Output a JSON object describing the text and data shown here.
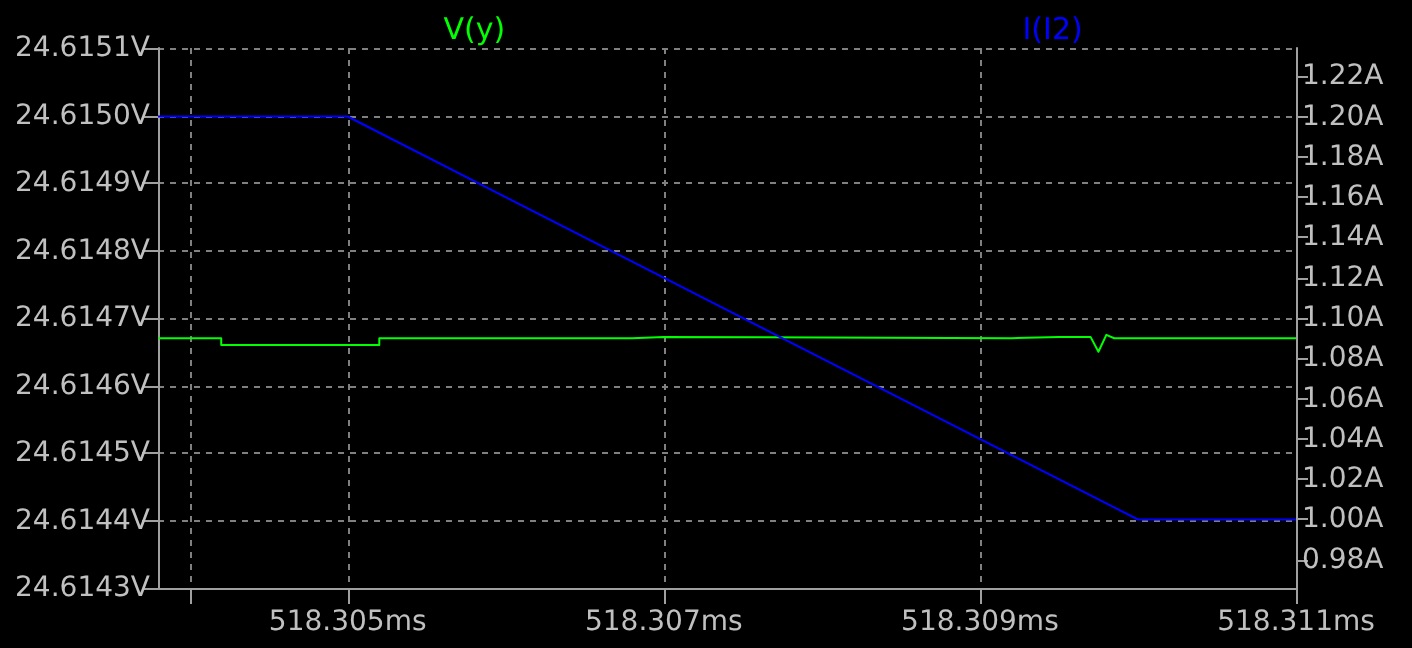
{
  "chart_data": {
    "type": "line",
    "xlim": [
      518.3038,
      518.311
    ],
    "xticks": [
      {
        "value": 518.304,
        "label": null
      },
      {
        "value": 518.305,
        "label": "518.305ms"
      },
      {
        "value": 518.307,
        "label": "518.307ms"
      },
      {
        "value": 518.309,
        "label": "518.309ms"
      },
      {
        "value": 518.311,
        "label": "518.311ms"
      }
    ],
    "ylim": [
      24.6143,
      24.6151
    ],
    "yticks": [
      {
        "value": 24.6143,
        "label": "24.6143V"
      },
      {
        "value": 24.6144,
        "label": "24.6144V"
      },
      {
        "value": 24.6145,
        "label": "24.6145V"
      },
      {
        "value": 24.6146,
        "label": "24.6146V"
      },
      {
        "value": 24.6147,
        "label": "24.6147V"
      },
      {
        "value": 24.6148,
        "label": "24.6148V"
      },
      {
        "value": 24.6149,
        "label": "24.6149V"
      },
      {
        "value": 24.615,
        "label": "24.6150V"
      },
      {
        "value": 24.6151,
        "label": "24.6151V"
      }
    ],
    "y2lim": [
      0.966,
      1.234
    ],
    "y2ticks": [
      {
        "value": 0.98,
        "label": "0.98A"
      },
      {
        "value": 1.0,
        "label": "1.00A"
      },
      {
        "value": 1.02,
        "label": "1.02A"
      },
      {
        "value": 1.04,
        "label": "1.04A"
      },
      {
        "value": 1.06,
        "label": "1.06A"
      },
      {
        "value": 1.08,
        "label": "1.08A"
      },
      {
        "value": 1.1,
        "label": "1.10A"
      },
      {
        "value": 1.12,
        "label": "1.12A"
      },
      {
        "value": 1.14,
        "label": "1.14A"
      },
      {
        "value": 1.16,
        "label": "1.16A"
      },
      {
        "value": 1.18,
        "label": "1.18A"
      },
      {
        "value": 1.2,
        "label": "1.20A"
      },
      {
        "value": 1.22,
        "label": "1.22A"
      }
    ],
    "series": [
      {
        "name": "V(y)",
        "color": "#00ff00",
        "x": [
          518.3038,
          518.3042,
          518.3042,
          518.3052,
          518.3052,
          518.3068,
          518.3068,
          518.307,
          518.307,
          518.3092,
          518.3092,
          518.3095,
          518.3095,
          518.3097,
          518.30975,
          518.3098,
          518.30985,
          518.3099,
          518.311
        ],
        "values": [
          24.61467,
          24.61467,
          24.61466,
          24.61466,
          24.61467,
          24.61467,
          24.614672,
          24.614672,
          24.61467,
          24.61467,
          24.614672,
          24.614672,
          24.61467,
          24.614672,
          24.61465,
          24.614675,
          24.61467,
          24.61467,
          24.61467
        ]
      },
      {
        "name": "I(I2)",
        "color": "#0000ff",
        "axis": "y2",
        "x": [
          518.3038,
          518.305,
          518.31,
          518.311
        ],
        "values": [
          1.2,
          1.2,
          1.0,
          1.0
        ]
      }
    ],
    "grid": true,
    "legend": "top",
    "marker": "none",
    "line_style": "solid"
  }
}
